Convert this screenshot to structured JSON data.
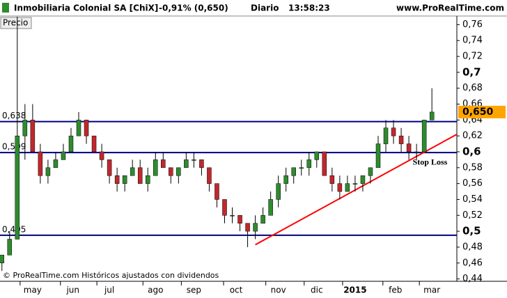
{
  "header": {
    "title": "Inmobiliaria Colonial SA [ChiX]",
    "change": "-0,91% (0,650)",
    "period": "Diario",
    "time": "13:58:23",
    "site": "www.ProRealTime.com"
  },
  "footer": "© ProRealTime.com Históricos ajustados con dividendos",
  "chart_data": {
    "type": "candlestick",
    "panel_label": "Precio",
    "up_color": "#2e8b2e",
    "down_color": "#c0282d",
    "x": [
      1,
      5,
      9,
      13,
      17,
      21,
      25,
      29,
      33,
      37,
      41,
      45,
      49,
      53,
      57,
      61,
      65,
      69,
      73,
      77,
      81,
      85,
      89,
      93,
      97,
      101,
      105,
      109,
      113,
      117,
      121,
      125,
      129,
      133,
      137,
      141,
      145,
      149,
      153,
      157,
      161,
      165,
      169,
      173,
      177,
      181,
      185,
      189,
      193,
      197,
      201,
      205,
      209,
      213,
      217,
      221,
      225
    ],
    "open": [
      0.46,
      0.47,
      0.49,
      0.62,
      0.64,
      0.6,
      0.57,
      0.58,
      0.59,
      0.6,
      0.62,
      0.64,
      0.62,
      0.6,
      0.59,
      0.57,
      0.56,
      0.57,
      0.58,
      0.56,
      0.57,
      0.59,
      0.58,
      0.57,
      0.58,
      0.59,
      0.59,
      0.58,
      0.56,
      0.54,
      0.52,
      0.52,
      0.51,
      0.5,
      0.51,
      0.52,
      0.54,
      0.56,
      0.57,
      0.58,
      0.58,
      0.59,
      0.6,
      0.57,
      0.56,
      0.55,
      0.56,
      0.56,
      0.57,
      0.58,
      0.61,
      0.63,
      0.62,
      0.61,
      0.6,
      0.6,
      0.64
    ],
    "high": [
      0.47,
      0.5,
      0.77,
      0.66,
      0.66,
      0.61,
      0.59,
      0.6,
      0.61,
      0.63,
      0.65,
      0.64,
      0.62,
      0.61,
      0.59,
      0.58,
      0.57,
      0.59,
      0.59,
      0.58,
      0.6,
      0.6,
      0.58,
      0.58,
      0.6,
      0.6,
      0.59,
      0.58,
      0.56,
      0.54,
      0.53,
      0.52,
      0.51,
      0.52,
      0.53,
      0.55,
      0.57,
      0.58,
      0.58,
      0.59,
      0.6,
      0.6,
      0.6,
      0.58,
      0.57,
      0.57,
      0.57,
      0.57,
      0.58,
      0.62,
      0.64,
      0.64,
      0.63,
      0.62,
      0.61,
      0.64,
      0.68
    ],
    "low": [
      0.45,
      0.47,
      0.49,
      0.59,
      0.6,
      0.56,
      0.56,
      0.58,
      0.59,
      0.6,
      0.62,
      0.61,
      0.6,
      0.58,
      0.56,
      0.55,
      0.55,
      0.57,
      0.56,
      0.55,
      0.57,
      0.58,
      0.56,
      0.56,
      0.58,
      0.58,
      0.57,
      0.55,
      0.53,
      0.51,
      0.51,
      0.5,
      0.48,
      0.49,
      0.51,
      0.52,
      0.53,
      0.55,
      0.56,
      0.57,
      0.57,
      0.58,
      0.57,
      0.55,
      0.54,
      0.55,
      0.55,
      0.55,
      0.56,
      0.58,
      0.6,
      0.61,
      0.6,
      0.59,
      0.59,
      0.6,
      0.64
    ],
    "close": [
      0.47,
      0.49,
      0.62,
      0.64,
      0.6,
      0.57,
      0.58,
      0.59,
      0.6,
      0.62,
      0.64,
      0.62,
      0.6,
      0.59,
      0.57,
      0.56,
      0.57,
      0.58,
      0.56,
      0.57,
      0.59,
      0.58,
      0.57,
      0.58,
      0.59,
      0.59,
      0.58,
      0.56,
      0.54,
      0.52,
      0.52,
      0.51,
      0.5,
      0.51,
      0.52,
      0.54,
      0.56,
      0.57,
      0.58,
      0.58,
      0.59,
      0.6,
      0.57,
      0.56,
      0.55,
      0.56,
      0.56,
      0.57,
      0.58,
      0.61,
      0.63,
      0.62,
      0.61,
      0.6,
      0.6,
      0.64,
      0.65
    ],
    "xlim": [
      0,
      238
    ],
    "xticks": [
      {
        "value": 17,
        "label": "may"
      },
      {
        "value": 38,
        "label": "jun"
      },
      {
        "value": 57,
        "label": "jul"
      },
      {
        "value": 81,
        "label": "ago"
      },
      {
        "value": 101,
        "label": "sep"
      },
      {
        "value": 123,
        "label": "oct"
      },
      {
        "value": 145,
        "label": "nov"
      },
      {
        "value": 165,
        "label": "dic"
      },
      {
        "value": 185,
        "label": "2015"
      },
      {
        "value": 206,
        "label": "feb"
      },
      {
        "value": 225,
        "label": "mar"
      }
    ],
    "ylim": [
      0.437,
      0.77
    ],
    "yticks": [
      {
        "value": 0.44,
        "label": "0,44"
      },
      {
        "value": 0.46,
        "label": "0,46"
      },
      {
        "value": 0.48,
        "label": "0,48"
      },
      {
        "value": 0.5,
        "label": "0,5"
      },
      {
        "value": 0.52,
        "label": "0,52"
      },
      {
        "value": 0.54,
        "label": "0,54"
      },
      {
        "value": 0.56,
        "label": "0,56"
      },
      {
        "value": 0.58,
        "label": "0,58"
      },
      {
        "value": 0.6,
        "label": "0,6"
      },
      {
        "value": 0.62,
        "label": "0,62"
      },
      {
        "value": 0.64,
        "label": "0,64"
      },
      {
        "value": 0.66,
        "label": "0,66"
      },
      {
        "value": 0.68,
        "label": "0,68"
      },
      {
        "value": 0.7,
        "label": "0,7"
      },
      {
        "value": 0.72,
        "label": "0,72"
      },
      {
        "value": 0.74,
        "label": "0,74"
      },
      {
        "value": 0.76,
        "label": "0,76"
      }
    ],
    "levels": [
      {
        "value": 0.638,
        "label": "0,638",
        "color": "#000080"
      },
      {
        "value": 0.599,
        "label": "0,599",
        "color": "#000080"
      },
      {
        "value": 0.495,
        "label": "0,495",
        "color": "#000080"
      }
    ],
    "trendline": {
      "x": [
        133,
        238
      ],
      "y": [
        0.483,
        0.622
      ],
      "color": "#ff0000"
    },
    "annotation": {
      "text": "Stop Loss",
      "x": 215,
      "y": 0.586
    },
    "last_price": {
      "value": 0.65,
      "label": "0,650",
      "color": "#ffa500"
    }
  }
}
